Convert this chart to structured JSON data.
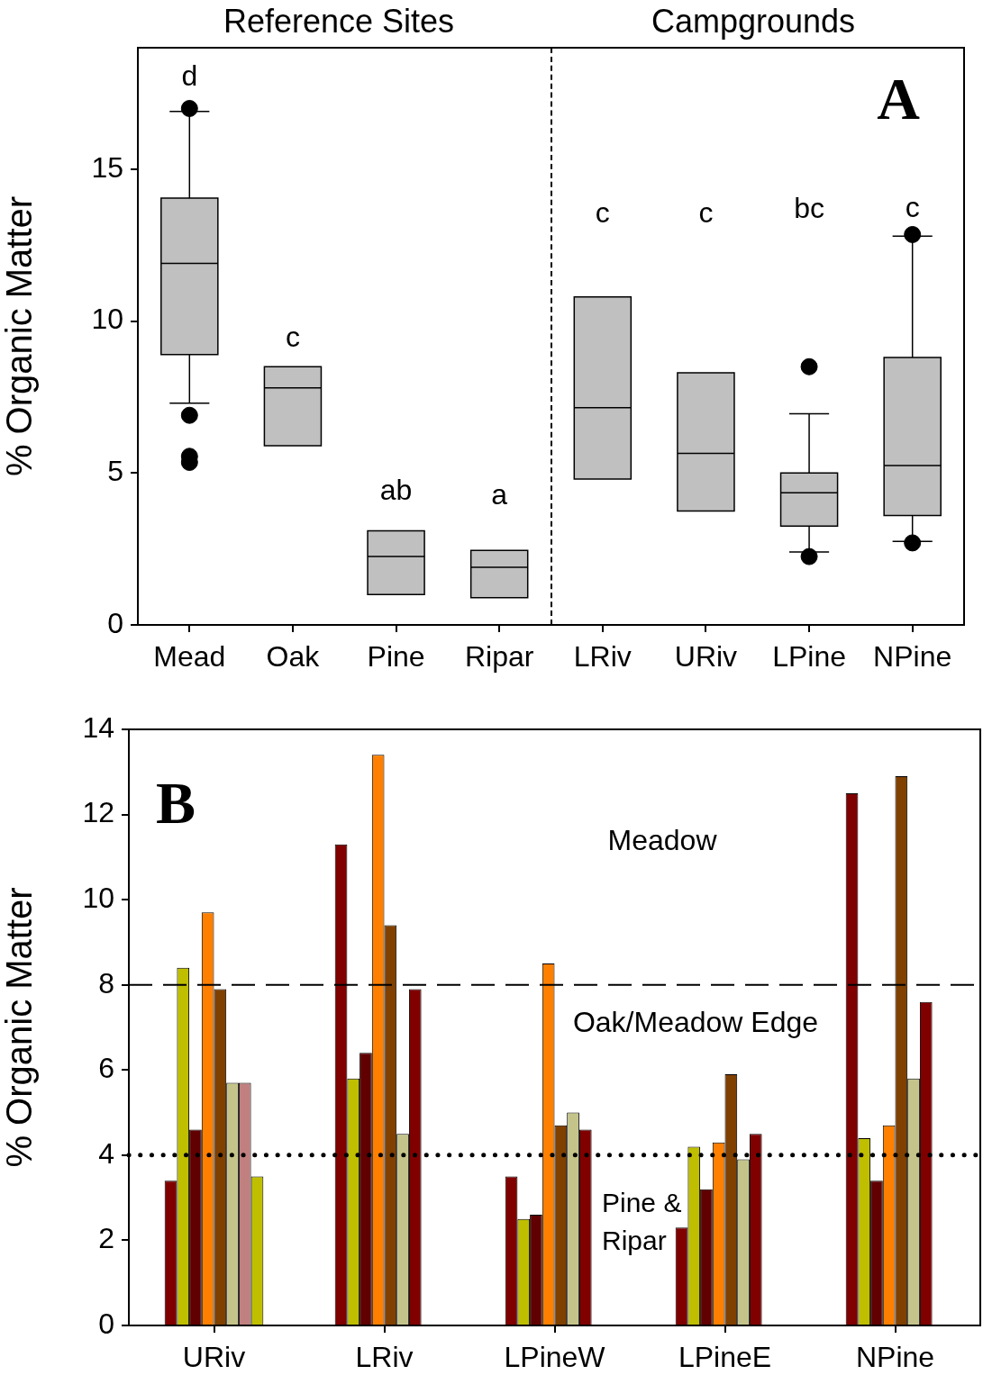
{
  "chart_data": [
    {
      "type": "box",
      "ylabel": "% Organic Matter",
      "categories": [
        "Mead",
        "Oak",
        "Pine",
        "Ripar",
        "LRiv",
        "URiv",
        "LPine",
        "NPine"
      ],
      "boxes": [
        {
          "low": 7.3,
          "q1": 8.9,
          "median": 11.9,
          "q3": 14.05,
          "high": 16.9,
          "outliers": [
            17.0,
            6.9,
            5.55,
            5.35
          ]
        },
        {
          "low": 5.9,
          "q1": 5.9,
          "median": 7.8,
          "q3": 8.5,
          "high": 8.5
        },
        {
          "low": 1.0,
          "q1": 1.0,
          "median": 2.25,
          "q3": 3.1,
          "high": 3.1
        },
        {
          "low": 0.9,
          "q1": 0.9,
          "median": 1.9,
          "q3": 2.45,
          "high": 2.45
        },
        {
          "low": 4.8,
          "q1": 4.8,
          "median": 7.15,
          "q3": 10.8,
          "high": 10.8
        },
        {
          "low": 3.75,
          "q1": 3.75,
          "median": 5.65,
          "q3": 8.3,
          "high": 8.3
        },
        {
          "low": 2.4,
          "q1": 3.25,
          "median": 4.35,
          "q3": 5.0,
          "high": 6.95,
          "outliers": [
            8.5,
            2.25
          ]
        },
        {
          "low": 2.75,
          "q1": 3.6,
          "median": 5.25,
          "q3": 8.8,
          "high": 12.8,
          "outliers": [
            12.85,
            2.7
          ]
        }
      ],
      "ylim": [
        0,
        19
      ],
      "yticks": [
        0,
        5,
        10,
        15
      ],
      "grid": false,
      "marker": "circle",
      "annotations": [
        "Reference Sites",
        "Campgrounds",
        "A",
        "d",
        "c",
        "ab",
        "a",
        "c",
        "c",
        "bc",
        "c"
      ]
    },
    {
      "type": "bar",
      "ylabel": "% Organic Matter",
      "categories": [
        "URiv",
        "LRiv",
        "LPineW",
        "LPineE",
        "NPine"
      ],
      "series": [
        {
          "color": "#800000",
          "values": [
            3.4,
            11.3,
            3.5,
            2.3,
            12.5
          ]
        },
        {
          "color": "#bfbf00",
          "values": [
            8.4,
            5.8,
            2.5,
            4.2,
            4.4
          ]
        },
        {
          "color": "#600000",
          "values": [
            4.6,
            6.4,
            2.6,
            3.2,
            3.4
          ]
        },
        {
          "color": "#ff8000",
          "values": [
            9.7,
            13.4,
            8.5,
            4.3,
            4.7
          ]
        },
        {
          "color": "#804000",
          "values": [
            7.9,
            9.4,
            4.7,
            5.9,
            12.9
          ]
        },
        {
          "color": "#c4c48a",
          "values": [
            5.7,
            4.5,
            5.0,
            3.9,
            5.8
          ]
        },
        {
          "colors": [
            "#c08080",
            "#800000",
            "#800000",
            "#800000",
            "#800000"
          ],
          "values": [
            5.7,
            7.9,
            4.6,
            4.5,
            7.6
          ]
        },
        {
          "color": "#bfbf00",
          "values": [
            3.5,
            null,
            null,
            null,
            null
          ]
        }
      ],
      "ylim": [
        0,
        14
      ],
      "yticks": [
        0,
        2,
        4,
        6,
        8,
        10,
        12,
        14
      ],
      "grid": false,
      "legend": false,
      "ref_lines": [
        {
          "axis": "y",
          "value": 8,
          "line_style": "dashed"
        },
        {
          "axis": "y",
          "value": 4,
          "line_style": "dotted"
        }
      ],
      "annotations": [
        "B",
        "Meadow",
        "Oak/Meadow Edge",
        "Pine &\nRipar"
      ]
    }
  ]
}
